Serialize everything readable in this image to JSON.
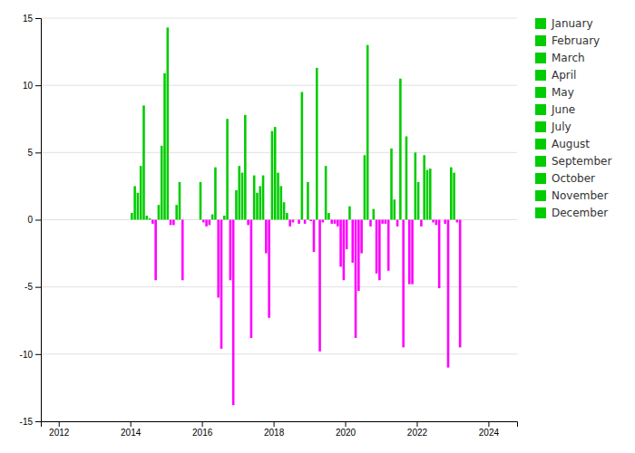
{
  "chart_data": {
    "type": "bar",
    "xlim": [
      2011.5,
      2024.8
    ],
    "xticks": [
      2012,
      2014,
      2016,
      2018,
      2020,
      2022,
      2024
    ],
    "ylim": [
      -15,
      15
    ],
    "yticks": [
      -15,
      -10,
      -5,
      0,
      5,
      10,
      15
    ],
    "grid": true,
    "legend": "right",
    "series": [
      {
        "name": "January",
        "color": "#00CC00",
        "x": [
          2014.0417,
          2015.0417,
          2016.0417,
          2017.0417,
          2018.0417,
          2019.0417,
          2020.0417,
          2021.0417,
          2022.0417,
          2023.0417
        ],
        "values": [
          0.5,
          14.3,
          -0.2,
          4.0,
          6.9,
          -0.1,
          -2.2,
          -0.3,
          2.8,
          3.5
        ],
        "colors": [
          "#00CC00",
          "#00CC00",
          "#FF00FF",
          "#00CC00",
          "#00CC00",
          "#FF00FF",
          "#FF00FF",
          "#FF00FF",
          "#00CC00",
          "#00CC00"
        ]
      },
      {
        "name": "February",
        "color": "#00CC00",
        "x": [
          2014.125,
          2015.125,
          2016.125,
          2017.125,
          2018.125,
          2019.125,
          2020.125,
          2021.125,
          2022.125,
          2023.125
        ],
        "values": [
          2.5,
          -0.4,
          -0.5,
          3.5,
          3.5,
          -2.4,
          1.0,
          -0.3,
          -0.5,
          -0.2
        ],
        "colors": [
          "#00CC00",
          "#FF00FF",
          "#FF00FF",
          "#00CC00",
          "#00CC00",
          "#FF00FF",
          "#00CC00",
          "#FF00FF",
          "#FF00FF",
          "#FF00FF"
        ]
      },
      {
        "name": "March",
        "color": "#00CC00",
        "x": [
          2014.2083,
          2015.2083,
          2016.2083,
          2017.2083,
          2018.2083,
          2019.2083,
          2020.2083,
          2021.2083,
          2022.2083,
          2023.2083
        ],
        "values": [
          2.0,
          -0.4,
          -0.4,
          7.8,
          2.5,
          11.3,
          -3.2,
          -3.8,
          4.8,
          -9.5
        ],
        "colors": [
          "#00CC00",
          "#FF00FF",
          "#FF00FF",
          "#00CC00",
          "#00CC00",
          "#00CC00",
          "#FF00FF",
          "#FF00FF",
          "#00CC00",
          "#FF00FF"
        ]
      },
      {
        "name": "April",
        "color": "#00CC00",
        "x": [
          2014.2917,
          2015.2917,
          2016.2917,
          2017.2917,
          2018.2917,
          2019.2917,
          2020.2917,
          2021.2917,
          2022.2917
        ],
        "values": [
          4.0,
          1.1,
          0.4,
          -0.4,
          1.3,
          -9.8,
          -8.8,
          5.3,
          3.7
        ],
        "colors": [
          "#00CC00",
          "#00CC00",
          "#00CC00",
          "#FF00FF",
          "#00CC00",
          "#FF00FF",
          "#FF00FF",
          "#00CC00",
          "#00CC00"
        ]
      },
      {
        "name": "May",
        "color": "#00CC00",
        "x": [
          2014.375,
          2015.375,
          2016.375,
          2017.375,
          2018.375,
          2019.375,
          2020.375,
          2021.375,
          2022.375
        ],
        "values": [
          8.5,
          2.8,
          3.9,
          -8.8,
          0.5,
          -0.2,
          -5.3,
          1.5,
          3.8
        ],
        "colors": [
          "#00CC00",
          "#00CC00",
          "#00CC00",
          "#FF00FF",
          "#00CC00",
          "#FF00FF",
          "#FF00FF",
          "#00CC00",
          "#00CC00"
        ]
      },
      {
        "name": "June",
        "color": "#00CC00",
        "x": [
          2014.4583,
          2015.4583,
          2016.4583,
          2017.4583,
          2018.4583,
          2019.4583,
          2020.4583,
          2021.4583,
          2022.4583
        ],
        "values": [
          0.3,
          -4.5,
          -5.8,
          3.3,
          -0.5,
          4.0,
          -2.5,
          -0.5,
          -0.2
        ],
        "colors": [
          "#00CC00",
          "#FF00FF",
          "#FF00FF",
          "#00CC00",
          "#FF00FF",
          "#00CC00",
          "#FF00FF",
          "#FF00FF",
          "#FF00FF"
        ]
      },
      {
        "name": "July",
        "color": "#00CC00",
        "x": [
          2014.5417,
          2016.5417,
          2017.5417,
          2018.5417,
          2019.5417,
          2020.5417,
          2021.5417,
          2022.5417
        ],
        "values": [
          0.1,
          -9.6,
          2.0,
          -0.2,
          0.5,
          4.8,
          10.5,
          -0.4
        ],
        "colors": [
          "#00CC00",
          "#FF00FF",
          "#00CC00",
          "#FF00FF",
          "#00CC00",
          "#00CC00",
          "#00CC00",
          "#FF00FF"
        ]
      },
      {
        "name": "August",
        "color": "#00CC00",
        "x": [
          2014.625,
          2016.625,
          2017.625,
          2019.625,
          2020.625,
          2021.625,
          2022.625
        ],
        "values": [
          -0.3,
          0.3,
          2.5,
          -0.3,
          13.0,
          -9.5,
          -5.1
        ],
        "colors": [
          "#FF00FF",
          "#00CC00",
          "#00CC00",
          "#FF00FF",
          "#00CC00",
          "#FF00FF",
          "#FF00FF"
        ]
      },
      {
        "name": "September",
        "color": "#00CC00",
        "x": [
          2014.7083,
          2016.7083,
          2017.7083,
          2018.7083,
          2019.7083,
          2020.7083,
          2021.7083
        ],
        "values": [
          -4.5,
          7.5,
          3.3,
          -0.3,
          -0.3,
          -0.5,
          6.2
        ],
        "colors": [
          "#FF00FF",
          "#00CC00",
          "#00CC00",
          "#FF00FF",
          "#FF00FF",
          "#FF00FF",
          "#00CC00"
        ]
      },
      {
        "name": "October",
        "color": "#00CC00",
        "x": [
          2014.7917,
          2016.7917,
          2017.7917,
          2018.7917,
          2019.7917,
          2020.7917,
          2021.7917,
          2022.7917
        ],
        "values": [
          1.1,
          -4.5,
          -2.5,
          9.5,
          -0.5,
          0.8,
          -4.8,
          -0.3
        ],
        "colors": [
          "#00CC00",
          "#FF00FF",
          "#FF00FF",
          "#00CC00",
          "#FF00FF",
          "#00CC00",
          "#FF00FF",
          "#FF00FF"
        ]
      },
      {
        "name": "November",
        "color": "#00CC00",
        "x": [
          2014.875,
          2016.875,
          2017.875,
          2018.875,
          2019.875,
          2020.875,
          2021.875,
          2022.875
        ],
        "values": [
          5.5,
          -13.8,
          -7.3,
          -0.3,
          -3.5,
          -4.0,
          -4.8,
          -11.0
        ],
        "colors": [
          "#00CC00",
          "#FF00FF",
          "#FF00FF",
          "#FF00FF",
          "#FF00FF",
          "#FF00FF",
          "#FF00FF",
          "#FF00FF"
        ]
      },
      {
        "name": "December",
        "color": "#00CC00",
        "x": [
          2014.9583,
          2015.9583,
          2016.9583,
          2017.9583,
          2018.9583,
          2019.9583,
          2020.9583,
          2021.9583,
          2022.9583
        ],
        "values": [
          10.9,
          2.8,
          2.2,
          6.6,
          2.8,
          -4.5,
          -4.5,
          5.0,
          3.9
        ],
        "colors": [
          "#00CC00",
          "#00CC00",
          "#00CC00",
          "#00CC00",
          "#00CC00",
          "#FF00FF",
          "#FF00FF",
          "#00CC00",
          "#00CC00"
        ]
      }
    ]
  }
}
